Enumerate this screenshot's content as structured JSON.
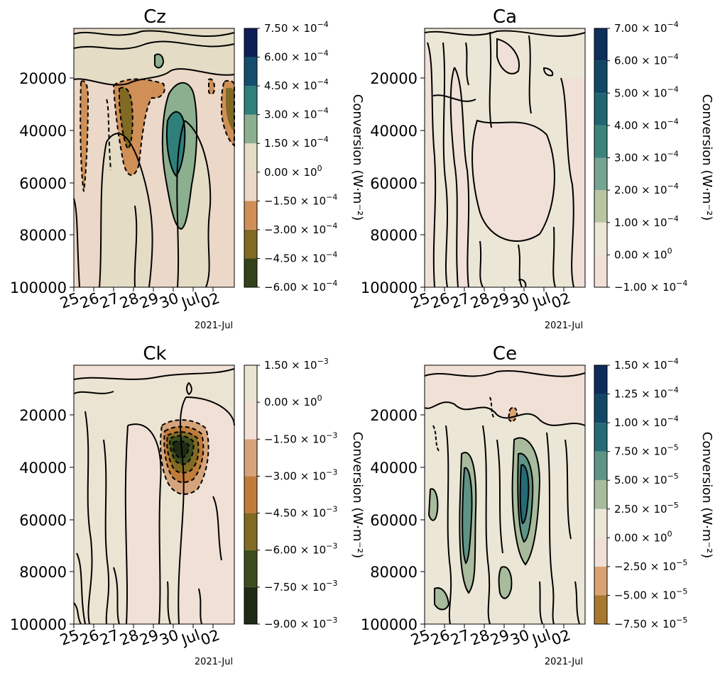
{
  "chart_data": [
    {
      "type": "contour",
      "title": "Cz",
      "ylim": [
        100000,
        0
      ],
      "y_ticks": [
        "20000",
        "40000",
        "60000",
        "80000",
        "100000"
      ],
      "y_tick_values": [
        20000,
        40000,
        60000,
        80000,
        100000
      ],
      "x_ticks": [
        "25",
        "26",
        "27",
        "28",
        "29",
        "30",
        "Jul",
        "02"
      ],
      "x_offset_label": "2021-Jul",
      "colorbar": {
        "label": "Conversion (W·m⁻²)",
        "levels": [
          -0.0006,
          -0.00045,
          -0.0003,
          -0.00015,
          0.0,
          0.00015,
          0.0003,
          0.00045,
          0.0006,
          0.00075
        ],
        "tick_labels": [
          [
            "−6.00",
            "−4"
          ],
          [
            "−4.50",
            "−4"
          ],
          [
            "−3.00",
            "−4"
          ],
          [
            "−1.50",
            "−4"
          ],
          [
            "0.00",
            "0"
          ],
          [
            "1.50",
            "−4"
          ],
          [
            "3.00",
            "−4"
          ],
          [
            "4.50",
            "−4"
          ],
          [
            "6.00",
            "−4"
          ],
          [
            "7.50",
            "−4"
          ]
        ],
        "colors": [
          "#33421a",
          "#806a24",
          "#cf8f56",
          "#ecd8c8",
          "#e4dcc5",
          "#8caf90",
          "#2f7f7a",
          "#134f6d",
          "#0e1f57"
        ]
      },
      "field_summary": {
        "background_level_color": "#ecd8c8",
        "positive_maximum_region": "Jun 29–30, 25000–78000",
        "negative_minimum_regions": [
          "Jun 27–28, 22000–60000",
          "Jul 03, 22000–50000",
          "Jun 25, 28000–65000"
        ]
      }
    },
    {
      "type": "contour",
      "title": "Ca",
      "ylim": [
        100000,
        0
      ],
      "y_ticks": [
        "20000",
        "40000",
        "60000",
        "80000",
        "100000"
      ],
      "y_tick_values": [
        20000,
        40000,
        60000,
        80000,
        100000
      ],
      "x_ticks": [
        "25",
        "26",
        "27",
        "28",
        "29",
        "30",
        "Jul",
        "02"
      ],
      "x_offset_label": "2021-Jul",
      "colorbar": {
        "label": "Conversion (W·m⁻²)",
        "levels": [
          -0.0001,
          0.0,
          0.0001,
          0.0002,
          0.0003,
          0.0004,
          0.0005,
          0.0006,
          0.0007
        ],
        "tick_labels": [
          [
            "−1.00",
            "−4"
          ],
          [
            "0.00",
            "0"
          ],
          [
            "1.00",
            "−4"
          ],
          [
            "2.00",
            "−4"
          ],
          [
            "3.00",
            "−4"
          ],
          [
            "4.00",
            "−4"
          ],
          [
            "5.00",
            "−4"
          ],
          [
            "6.00",
            "−4"
          ],
          [
            "7.00",
            "−4"
          ]
        ],
        "colors": [
          "#f0e0d8",
          "#ece6d6",
          "#b9c4a3",
          "#76a492",
          "#3b847c",
          "#1f6672",
          "#124866",
          "#0c2f5c",
          "#101d4f"
        ]
      },
      "field_summary": {
        "background_level_color": "#ece6d6",
        "note": "mostly weak values between −1e-4 and 1e-4"
      }
    },
    {
      "type": "contour",
      "title": "Ck",
      "ylim": [
        100000,
        0
      ],
      "y_ticks": [
        "20000",
        "40000",
        "60000",
        "80000",
        "100000"
      ],
      "y_tick_values": [
        20000,
        40000,
        60000,
        80000,
        100000
      ],
      "x_ticks": [
        "25",
        "26",
        "27",
        "28",
        "29",
        "30",
        "Jul",
        "02"
      ],
      "x_offset_label": "2021-Jul",
      "colorbar": {
        "label": "Conversion (W·m⁻²)",
        "levels": [
          -0.009,
          -0.0075,
          -0.006,
          -0.0045,
          -0.003,
          -0.0015,
          0.0,
          0.0015
        ],
        "tick_labels": [
          [
            "−9.00",
            "−3"
          ],
          [
            "−7.50",
            "−3"
          ],
          [
            "−6.00",
            "−3"
          ],
          [
            "−4.50",
            "−3"
          ],
          [
            "−3.00",
            "−3"
          ],
          [
            "−1.50",
            "−3"
          ],
          [
            "0.00",
            "0"
          ],
          [
            "1.50",
            "−3"
          ]
        ],
        "colors": [
          "#1f2a16",
          "#3b4d1c",
          "#806a24",
          "#c07c3a",
          "#d6a47c",
          "#f1e0d6",
          "#ece4d2"
        ]
      },
      "field_summary": {
        "negative_minimum_region": "Jun 29–30, 24000–48000"
      }
    },
    {
      "type": "contour",
      "title": "Ce",
      "ylim": [
        100000,
        0
      ],
      "y_ticks": [
        "20000",
        "40000",
        "60000",
        "80000",
        "100000"
      ],
      "y_tick_values": [
        20000,
        40000,
        60000,
        80000,
        100000
      ],
      "x_ticks": [
        "25",
        "26",
        "27",
        "28",
        "29",
        "30",
        "Jul",
        "02"
      ],
      "x_offset_label": "2021-Jul",
      "colorbar": {
        "label": "Conversion (W·m⁻²)",
        "levels": [
          -7.5e-05,
          -5e-05,
          -2.5e-05,
          0.0,
          2.5e-05,
          5e-05,
          7.5e-05,
          0.0001,
          0.000125,
          0.00015
        ],
        "tick_labels": [
          [
            "−7.50",
            "−5"
          ],
          [
            "−5.00",
            "−5"
          ],
          [
            "−2.50",
            "−5"
          ],
          [
            "0.00",
            "0"
          ],
          [
            "2.50",
            "−5"
          ],
          [
            "5.00",
            "−5"
          ],
          [
            "7.50",
            "−5"
          ],
          [
            "1.00",
            "−4"
          ],
          [
            "1.25",
            "−4"
          ],
          [
            "1.50",
            "−4"
          ]
        ],
        "colors": [
          "#a8782e",
          "#d8a272",
          "#f1e0d6",
          "#ece6d6",
          "#a8bb9c",
          "#5e9486",
          "#266a76",
          "#124866",
          "#0d2c5c"
        ]
      },
      "field_summary": {
        "positive_maximum_region": "Jun 27 and Jun 29–30, 30000–80000"
      }
    }
  ]
}
